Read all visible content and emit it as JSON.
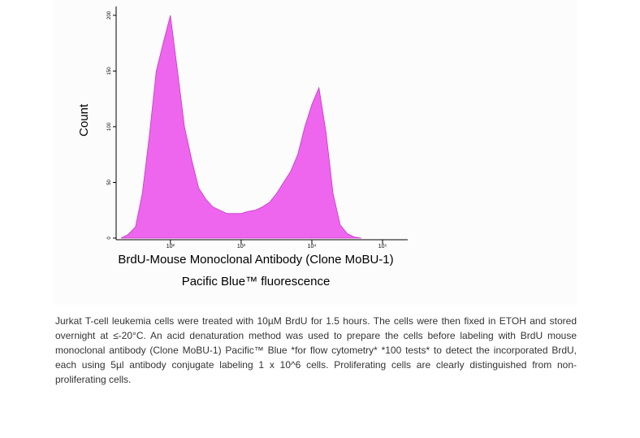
{
  "chart_data": {
    "type": "histogram-area",
    "ylabel": "Count",
    "xlabel": [
      "BrdU-Mouse Monoclonal Antibody (Clone MoBU-1)",
      "Pacific Blue™ fluorescence"
    ],
    "color": "#ee66ee",
    "xscale": "log",
    "xlim": [
      18,
      215000
    ],
    "xticks": [
      {
        "value": 100,
        "label": "10²"
      },
      {
        "value": 1000,
        "label": "10³"
      },
      {
        "value": 10000,
        "label": "10⁴"
      },
      {
        "value": 100000,
        "label": "10⁵"
      }
    ],
    "ylim": [
      0,
      205
    ],
    "yticks": [
      0,
      50,
      100,
      150,
      200
    ],
    "x": [
      20,
      25,
      32,
      40,
      50,
      63,
      79,
      100,
      126,
      158,
      200,
      251,
      316,
      398,
      501,
      631,
      794,
      1000,
      1259,
      1585,
      1995,
      2512,
      3162,
      3981,
      5012,
      6310,
      7943,
      10000,
      12589,
      15849,
      19953,
      25119,
      31623,
      39811,
      50119
    ],
    "values": [
      0,
      3,
      10,
      40,
      90,
      150,
      175,
      200,
      150,
      100,
      70,
      45,
      35,
      28,
      25,
      22,
      22,
      22,
      24,
      25,
      28,
      32,
      40,
      50,
      60,
      75,
      100,
      120,
      135,
      95,
      40,
      12,
      4,
      1,
      0
    ]
  },
  "caption": "Jurkat T-cell leukemia cells were treated with 10µM BrdU for 1.5 hours. The cells were then fixed in ETOH and stored overnight at ≤-20°C. An acid denaturation method was used to prepare the cells before labeling with BrdU mouse monoclonal antibody (Clone MoBU-1) Pacific™ Blue *for flow cytometry* *100 tests* to detect the incorporated BrdU, each using 5µl antibody conjugate labeling 1 x 10^6 cells. Proliferating cells are clearly distinguished from non-proliferating cells."
}
